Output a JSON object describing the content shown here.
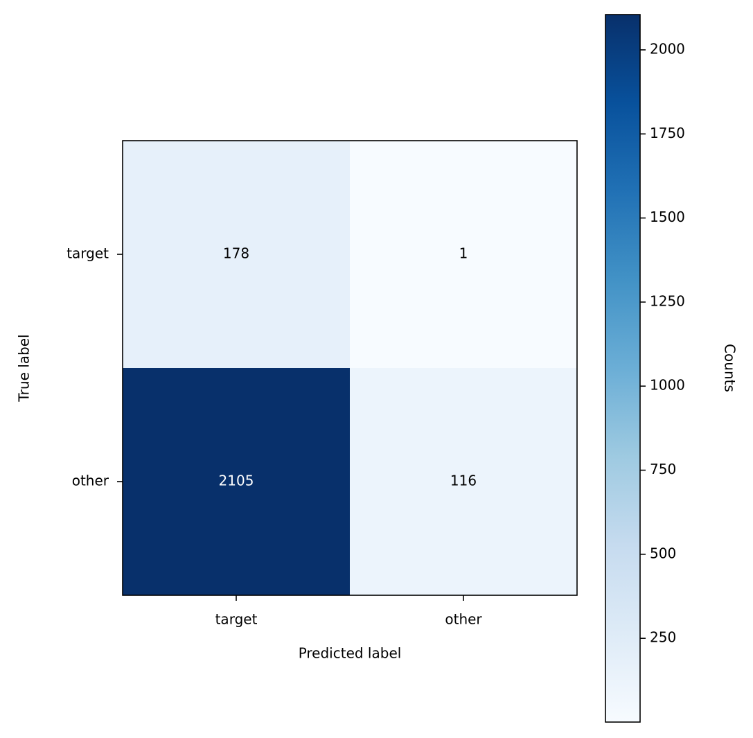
{
  "chart_data": {
    "type": "heatmap",
    "x_categories": [
      "target",
      "other"
    ],
    "y_categories": [
      "target",
      "other"
    ],
    "values": [
      [
        178,
        1
      ],
      [
        2105,
        116
      ]
    ],
    "xlabel": "Predicted label",
    "ylabel": "True label",
    "colorbar": {
      "label": "Counts",
      "range": [
        1,
        2105
      ],
      "ticks": [
        250,
        500,
        750,
        1000,
        1250,
        1500,
        1750,
        2000
      ],
      "colormap": "Blues"
    },
    "colors": {
      "low": "#f7fbff",
      "high": "#08306b",
      "text_dark": "#000000",
      "text_light": "#ffffff"
    }
  }
}
